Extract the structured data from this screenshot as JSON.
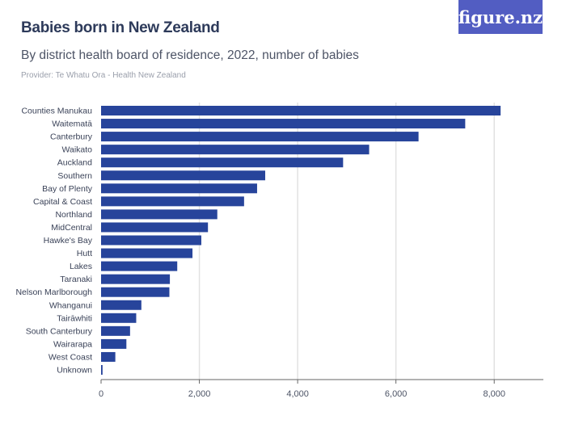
{
  "header": {
    "title": "Babies born in New Zealand",
    "subtitle": "By district health board of residence, 2022, number of babies",
    "provider": "Provider: Te Whatu Ora - Health New Zealand",
    "logo": "figure.nz"
  },
  "colors": {
    "bar": "#27449b",
    "logo_bg": "#525dc2",
    "grid": "#e2e2e2"
  },
  "chart_data": {
    "type": "bar",
    "orientation": "horizontal",
    "title": "Babies born in New Zealand",
    "subtitle": "By district health board of residence, 2022, number of babies",
    "xlim": [
      0,
      9000
    ],
    "xticks": [
      0,
      2000,
      4000,
      6000,
      8000
    ],
    "xtick_labels": [
      "0",
      "2,000",
      "4,000",
      "6,000",
      "8,000"
    ],
    "grid": true,
    "categories": [
      "Counties Manukau",
      "Waitematā",
      "Canterbury",
      "Waikato",
      "Auckland",
      "Southern",
      "Bay of Plenty",
      "Capital & Coast",
      "Northland",
      "MidCentral",
      "Hawke's Bay",
      "Hutt",
      "Lakes",
      "Taranaki",
      "Nelson Marlborough",
      "Whanganui",
      "Tairāwhiti",
      "South Canterbury",
      "Wairarapa",
      "West Coast",
      "Unknown"
    ],
    "values": [
      8130,
      7410,
      6460,
      5455,
      4925,
      3340,
      3175,
      2910,
      2365,
      2175,
      2040,
      1860,
      1550,
      1400,
      1390,
      820,
      715,
      590,
      515,
      290,
      30
    ]
  }
}
